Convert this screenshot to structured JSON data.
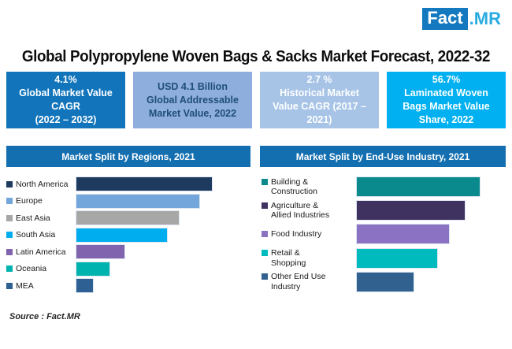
{
  "logo": {
    "fact": "Fact",
    "mr": ".MR",
    "box_color": "#1479BE",
    "mr_color": "#29ABE2"
  },
  "title": "Global Polypropylene Woven Bags & Sacks Market Forecast, 2022-32",
  "stat_boxes": [
    {
      "text": "4.1%\nGlobal Market Value\nCAGR\n(2022 – 2032)",
      "bg": "#1274BB",
      "fg": "#FFFFFF"
    },
    {
      "text": "USD 4.1 Billion\nGlobal Addressable\nMarket Value, 2022",
      "bg": "#8EAEDD",
      "fg": "#1F4E79"
    },
    {
      "text": "2.7 %\nHistorical Market\nValue CAGR (2017 –\n2021)",
      "bg": "#A7C4E7",
      "fg": "#FFFFFF"
    },
    {
      "text": "56.7%\nLaminated Woven\nBags Market Value\nShare, 2022",
      "bg": "#00B0F0",
      "fg": "#FFFFFF"
    }
  ],
  "source": "Source : Fact.MR",
  "chart_data": [
    {
      "type": "bar",
      "orientation": "horizontal",
      "title": "Market Split by Regions, 2021",
      "categories": [
        "North America",
        "Europe",
        "East Asia",
        "South Asia",
        "Latin America",
        "Oceania",
        "MEA"
      ],
      "values_relative_pct": [
        100,
        91,
        76,
        67,
        36,
        25,
        13
      ],
      "colors": [
        "#1E3A5F",
        "#73A7DB",
        "#A7A7A7",
        "#00AEEF",
        "#8164AE",
        "#00B3AF",
        "#2E6093"
      ],
      "legend_position": "left",
      "axes_visible": false,
      "value_labels_shown": false,
      "note": "bar lengths shown relative to longest bar; no numeric axis in figure"
    },
    {
      "type": "bar",
      "orientation": "horizontal",
      "title": "Market Split by End-Use Industry, 2021",
      "categories": [
        "Building & Construction",
        "Agriculture & Allied Industries",
        "Food Industry",
        "Retail & Shopping",
        "Other End Use Industry"
      ],
      "labels_display": [
        "Building &\nConstruction",
        "Agriculture &\nAllied Industries",
        "Food Industry",
        "Retail &\nShopping",
        "Other End Use\nIndustry"
      ],
      "values_relative_pct": [
        100,
        88,
        75,
        66,
        47
      ],
      "colors": [
        "#0B8A8D",
        "#3F3160",
        "#8C72C2",
        "#00BBBE",
        "#31618F"
      ],
      "legend_position": "left",
      "axes_visible": false,
      "value_labels_shown": false,
      "note": "bar lengths shown relative to longest bar; no numeric axis in figure"
    }
  ]
}
